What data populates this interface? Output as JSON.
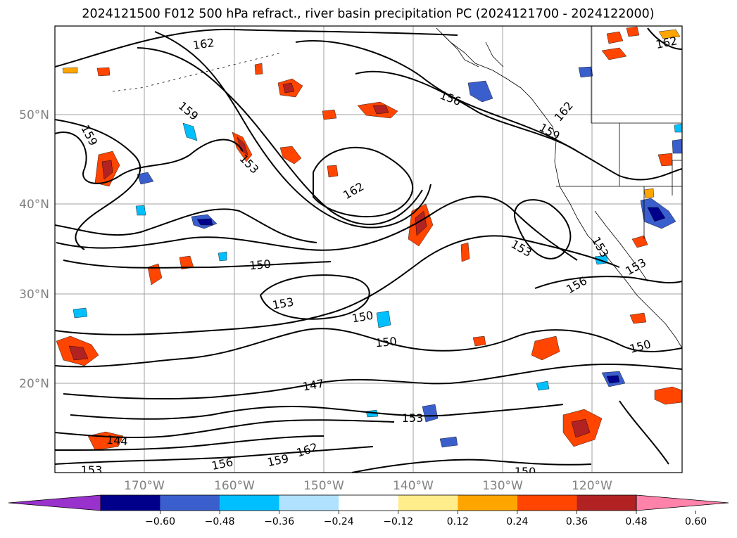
{
  "title": "2024121500 F012 500 hPa refract., river basin precipitation PC (2024121700 - 2024122000)",
  "map": {
    "lat_labels": [
      "50°N",
      "40°N",
      "30°N",
      "20°N"
    ],
    "lon_labels": [
      "170°W",
      "160°W",
      "150°W",
      "140°W",
      "130°W",
      "120°W"
    ],
    "gridlines": true,
    "contour_labels": [
      {
        "text": "162"
      },
      {
        "text": "162"
      },
      {
        "text": "162"
      },
      {
        "text": "162"
      },
      {
        "text": "162"
      },
      {
        "text": "159"
      },
      {
        "text": "159"
      },
      {
        "text": "159"
      },
      {
        "text": "159"
      },
      {
        "text": "156"
      },
      {
        "text": "156"
      },
      {
        "text": "156"
      },
      {
        "text": "153"
      },
      {
        "text": "153"
      },
      {
        "text": "153"
      },
      {
        "text": "153"
      },
      {
        "text": "153"
      },
      {
        "text": "153"
      },
      {
        "text": "153"
      },
      {
        "text": "150"
      },
      {
        "text": "150"
      },
      {
        "text": "150"
      },
      {
        "text": "150"
      },
      {
        "text": "150"
      },
      {
        "text": "147"
      },
      {
        "text": "144"
      }
    ]
  },
  "colorbar": {
    "ticks": [
      "−0.60",
      "−0.48",
      "−0.36",
      "−0.24",
      "−0.12",
      "0.12",
      "0.24",
      "0.36",
      "0.48",
      "0.60"
    ],
    "colors": [
      "#9932cc",
      "#00008b",
      "#3a5fcd",
      "#00bfff",
      "#b0e2ff",
      "#ffffff",
      "#ffec8b",
      "#ffa500",
      "#ff4500",
      "#b22222",
      "#ff82ab"
    ],
    "extend": "both"
  }
}
